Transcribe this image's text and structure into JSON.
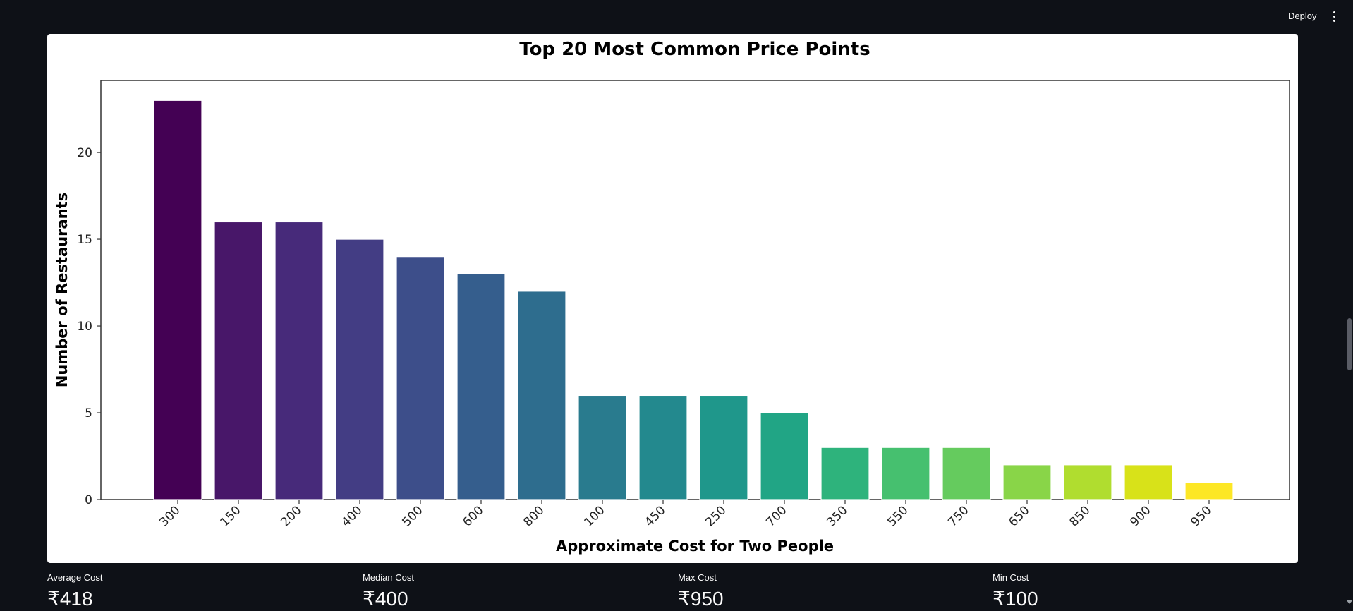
{
  "header": {
    "deploy_label": "Deploy",
    "menu_icon": "more-vertical-icon"
  },
  "chart_data": {
    "type": "bar",
    "title": "Top 20 Most Common Price Points",
    "xlabel": "Approximate Cost for Two People",
    "ylabel": "Number of Restaurants",
    "categories": [
      "300",
      "150",
      "200",
      "400",
      "500",
      "600",
      "800",
      "100",
      "450",
      "250",
      "700",
      "350",
      "550",
      "750",
      "650",
      "850",
      "900",
      "950"
    ],
    "values": [
      23,
      16,
      16,
      15,
      14,
      13,
      12,
      6,
      6,
      6,
      5,
      3,
      3,
      3,
      2,
      2,
      2,
      1
    ],
    "yticks": [
      0,
      5,
      10,
      15,
      20
    ],
    "ylim": [
      0,
      24.15
    ],
    "colormap": "viridis",
    "colors": [
      "#440154",
      "#481769",
      "#472a7a",
      "#433d84",
      "#3d4e8a",
      "#355e8d",
      "#2e6d8e",
      "#297b8e",
      "#23898e",
      "#1f978b",
      "#21a585",
      "#2eb37c",
      "#46c06f",
      "#65cb5e",
      "#89d548",
      "#b0dd2f",
      "#d8e219",
      "#fde725"
    ],
    "grid": false,
    "legend": false
  },
  "metrics": [
    {
      "label": "Average Cost",
      "value": "₹418"
    },
    {
      "label": "Median Cost",
      "value": "₹400"
    },
    {
      "label": "Max Cost",
      "value": "₹950"
    },
    {
      "label": "Min Cost",
      "value": "₹100"
    }
  ]
}
